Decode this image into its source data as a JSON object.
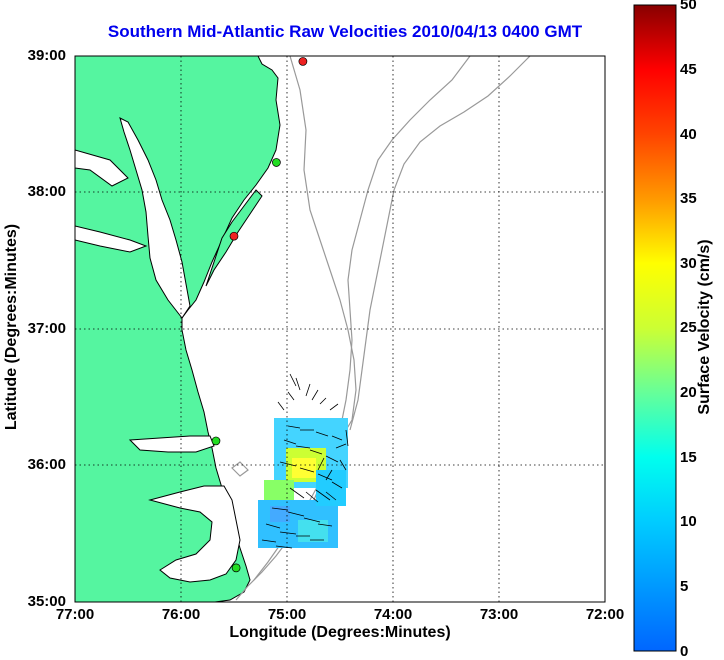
{
  "title": "Southern Mid-Atlantic Raw Velocities 2010/04/13 0400 GMT",
  "axes": {
    "xlabel": "Longitude (Degrees:Minutes)",
    "ylabel": "Latitude (Degrees:Minutes)",
    "xticks": [
      "77:00",
      "76:00",
      "75:00",
      "74:00",
      "73:00",
      "72:00"
    ],
    "yticks": [
      "39:00",
      "38:00",
      "37:00",
      "36:00",
      "35:00"
    ],
    "xlim": [
      -77,
      -72
    ],
    "ylim": [
      35,
      39
    ],
    "grid": "dotted"
  },
  "colorbar": {
    "label": "Surface Velocity (cm/s)",
    "ticks": [
      "50",
      "45",
      "40",
      "35",
      "30",
      "25",
      "20",
      "15",
      "10",
      "5",
      "0"
    ],
    "range": [
      0,
      50
    ],
    "colormap": "jet"
  },
  "colors": {
    "land": "#55f5a0",
    "title": "#0000ee",
    "bathymetry": "#999999",
    "coast": "#000000",
    "site_active": "#22dd22",
    "site_inactive": "#ee2222"
  },
  "stations": [
    {
      "lon": -74.85,
      "lat": 38.96,
      "status": "inactive"
    },
    {
      "lon": -75.1,
      "lat": 38.22,
      "status": "active"
    },
    {
      "lon": -75.5,
      "lat": 37.68,
      "status": "inactive"
    },
    {
      "lon": -75.67,
      "lat": 36.18,
      "status": "active"
    },
    {
      "lon": -75.48,
      "lat": 35.25,
      "status": "active"
    }
  ]
}
